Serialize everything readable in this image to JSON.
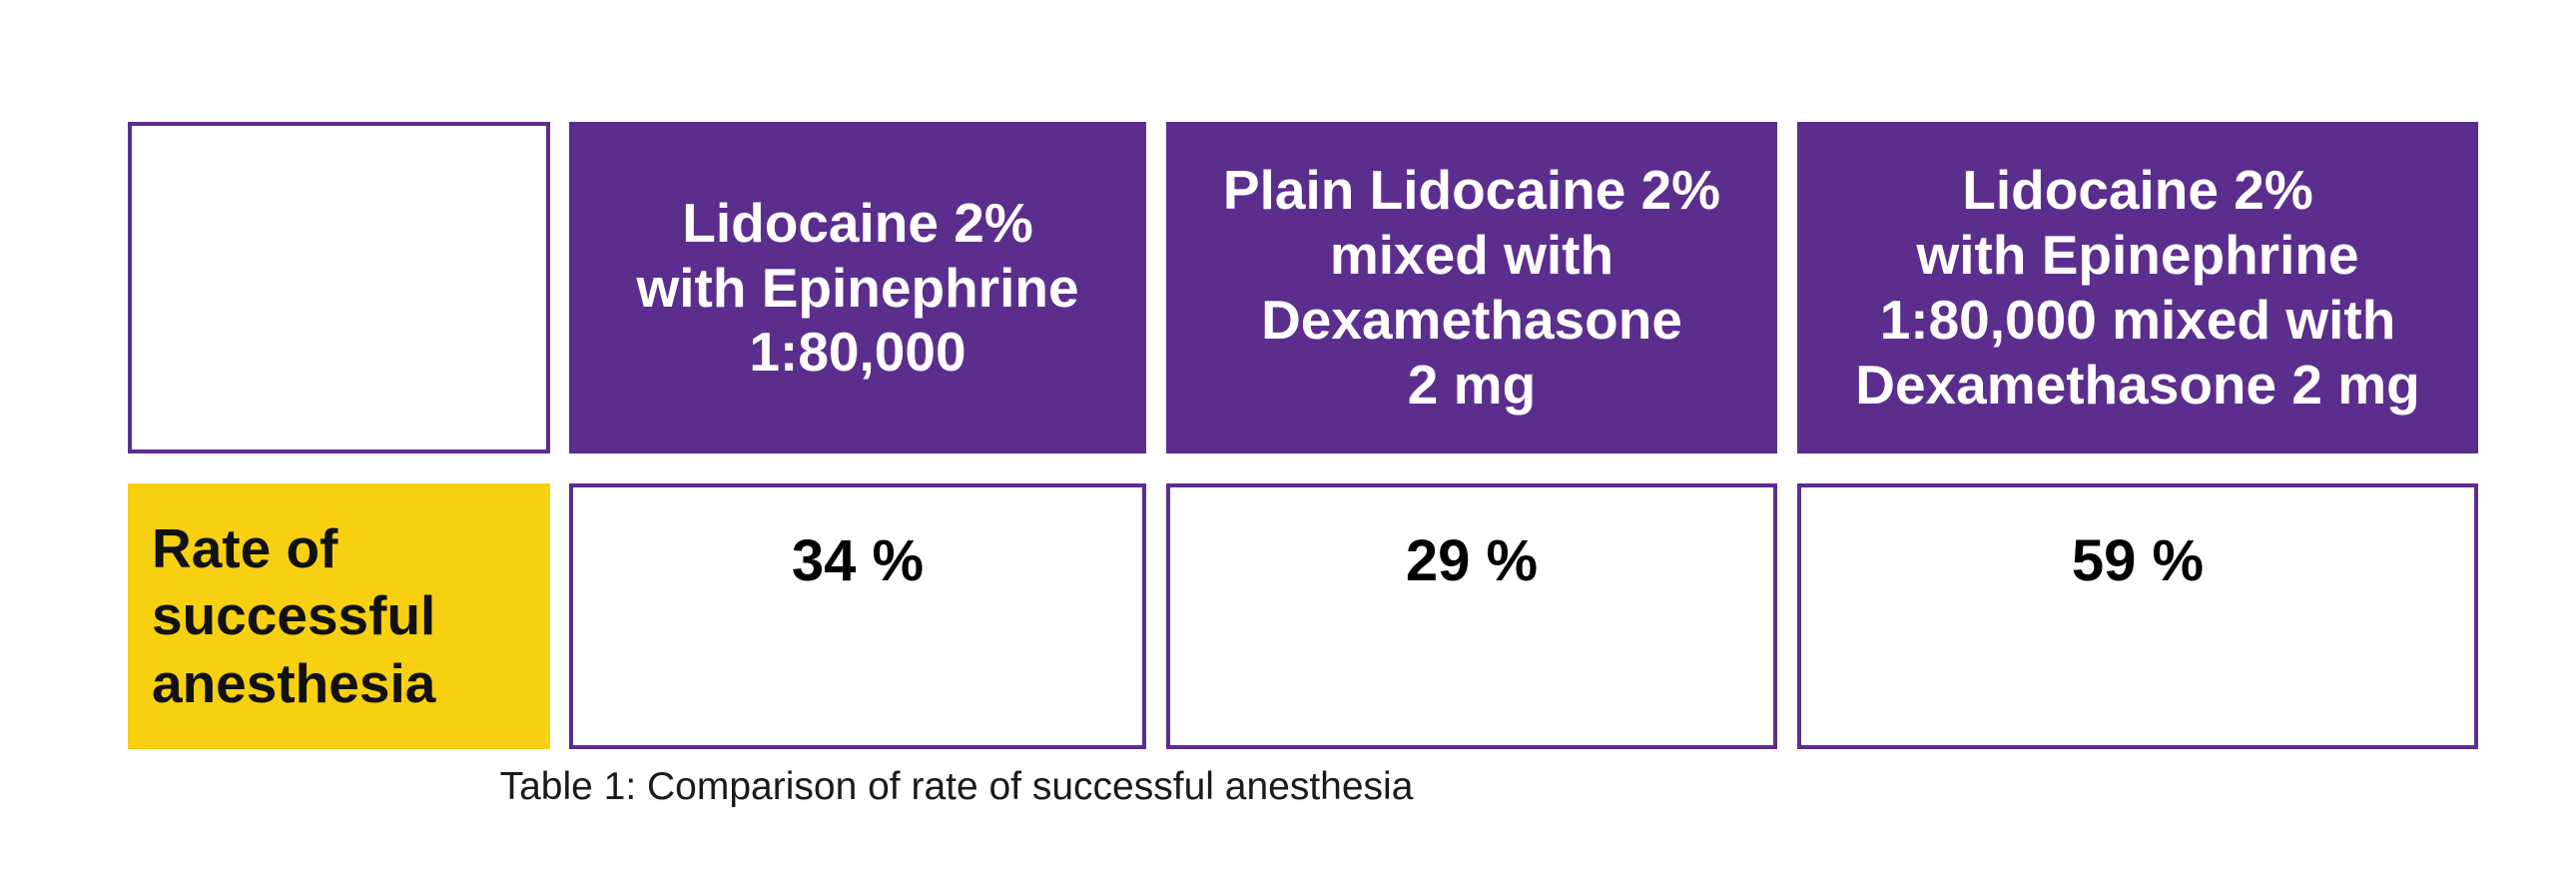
{
  "colors": {
    "header_bg": "#5b2e8e",
    "header_text": "#ffffff",
    "row_label_bg": "#f7d011",
    "border": "#5b2e8e"
  },
  "chart_data": {
    "type": "table",
    "columns": [
      "Lidocaine 2%\nwith Epinephrine\n1:80,000",
      "Plain Lidocaine 2%\nmixed with\nDexamethasone\n2 mg",
      "Lidocaine 2%\nwith Epinephrine\n1:80,000 mixed with\nDexamethasone 2 mg"
    ],
    "rows": [
      {
        "label": "Rate of\nsuccessful\nanesthesia",
        "values": [
          "34 %",
          "29 %",
          "59 %"
        ]
      }
    ],
    "caption": "Table 1: Comparison of rate of successful anesthesia"
  }
}
